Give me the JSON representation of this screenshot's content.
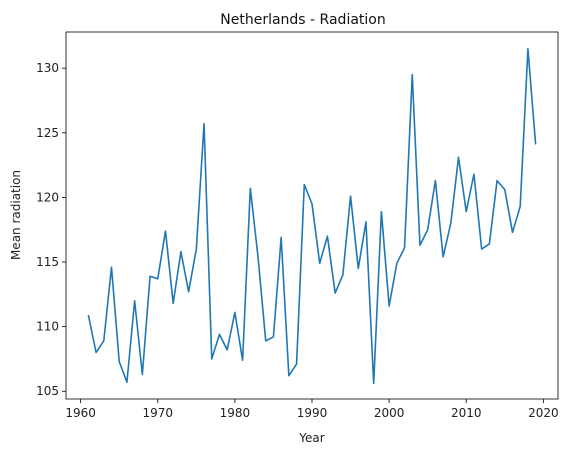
{
  "chart_data": {
    "type": "line",
    "title": "Netherlands - Radiation",
    "xlabel": "Year",
    "ylabel": "Mean radiation",
    "xlim": [
      1958.1,
      2021.9
    ],
    "ylim": [
      104.4,
      132.8
    ],
    "x_ticks": [
      1960,
      1970,
      1980,
      1990,
      2000,
      2010,
      2020
    ],
    "y_ticks": [
      105,
      110,
      115,
      120,
      125,
      130
    ],
    "grid": false,
    "legend": "none",
    "series": [
      {
        "color": "#1f77b4",
        "x": [
          1961,
          1962,
          1963,
          1964,
          1965,
          1966,
          1967,
          1968,
          1969,
          1970,
          1971,
          1972,
          1973,
          1974,
          1975,
          1976,
          1977,
          1978,
          1979,
          1980,
          1981,
          1982,
          1983,
          1984,
          1985,
          1986,
          1987,
          1988,
          1989,
          1990,
          1991,
          1992,
          1993,
          1994,
          1995,
          1996,
          1997,
          1998,
          1999,
          2000,
          2001,
          2002,
          2003,
          2004,
          2005,
          2006,
          2007,
          2008,
          2009,
          2010,
          2011,
          2012,
          2013,
          2014,
          2015,
          2016,
          2017,
          2018,
          2019
        ],
        "y": [
          110.9,
          108.0,
          108.9,
          114.6,
          107.3,
          105.7,
          112.0,
          106.3,
          113.9,
          113.7,
          117.4,
          111.8,
          115.8,
          112.7,
          116.0,
          125.7,
          107.5,
          109.4,
          108.2,
          111.1,
          107.4,
          120.7,
          115.4,
          108.9,
          109.2,
          116.9,
          106.2,
          107.1,
          121.0,
          119.5,
          114.9,
          117.0,
          112.6,
          114.0,
          120.1,
          114.5,
          118.1,
          105.6,
          118.9,
          111.6,
          114.9,
          116.1,
          129.5,
          116.3,
          117.5,
          121.3,
          115.4,
          118.0,
          123.1,
          118.9,
          121.8,
          116.0,
          116.4,
          121.3,
          120.6,
          117.3,
          119.3,
          131.5,
          124.1
        ]
      }
    ]
  }
}
